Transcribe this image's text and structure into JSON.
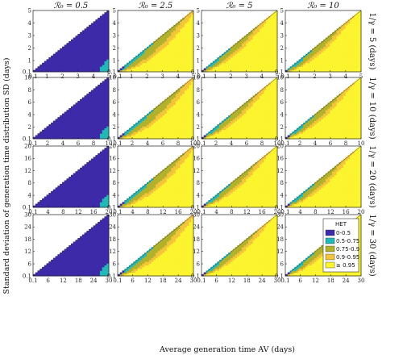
{
  "chart_data": {
    "type": "heatmap",
    "columns": [
      {
        "label": "ℛ₀ = 0.5",
        "r0": 0.5
      },
      {
        "label": "ℛ₀ = 2.5",
        "r0": 2.5
      },
      {
        "label": "ℛ₀ = 5",
        "r0": 5
      },
      {
        "label": "ℛ₀ = 10",
        "r0": 10
      }
    ],
    "rows": [
      {
        "label": "1/γ = 5 (days)",
        "gamma_inv": 5,
        "xlim": [
          0.1,
          5
        ],
        "ylim": [
          0.1,
          5
        ],
        "xticks": [
          "0.1",
          "1",
          "2",
          "3",
          "4",
          "5"
        ],
        "yticks": [
          "0.1",
          "1",
          "2",
          "3",
          "4",
          "5"
        ]
      },
      {
        "label": "1/γ = 10 (days)",
        "gamma_inv": 10,
        "xlim": [
          0.1,
          10
        ],
        "ylim": [
          0.1,
          10
        ],
        "xticks": [
          "0.1",
          "2",
          "4",
          "6",
          "8",
          "10"
        ],
        "yticks": [
          "0.1",
          "2",
          "4",
          "6",
          "8",
          "10"
        ]
      },
      {
        "label": "1/γ = 20 (days)",
        "gamma_inv": 20,
        "xlim": [
          0.1,
          20
        ],
        "ylim": [
          0.1,
          20
        ],
        "xticks": [
          "0.1",
          "4",
          "8",
          "12",
          "16",
          "20"
        ],
        "yticks": [
          "0.1",
          "4",
          "8",
          "12",
          "16",
          "20"
        ]
      },
      {
        "label": "1/γ = 30 (days)",
        "gamma_inv": 30,
        "xlim": [
          0.1,
          30
        ],
        "ylim": [
          0.1,
          30
        ],
        "xticks": [
          "0.1",
          "6",
          "12",
          "18",
          "24",
          "30"
        ],
        "yticks": [
          "0.1",
          "6",
          "12",
          "18",
          "24",
          "30"
        ]
      }
    ],
    "xlabel": "Average generation time AV (days)",
    "ylabel": "Standard deviation of generation time distribution SD (days)",
    "legend": {
      "title": "HET",
      "placement": "bottom-right panel",
      "bins": [
        {
          "label": "0-0.5",
          "color": "#3c2aa8"
        },
        {
          "label": "0.5-0.75",
          "color": "#24b7b7"
        },
        {
          "label": "0.75-0.9",
          "color": "#b1b12c"
        },
        {
          "label": "0.9-0.95",
          "color": "#f4c43a"
        },
        {
          "label": "≥ 0.95",
          "color": "#fbf42e"
        }
      ]
    },
    "valid_region": "SD ≤ AV"
  }
}
